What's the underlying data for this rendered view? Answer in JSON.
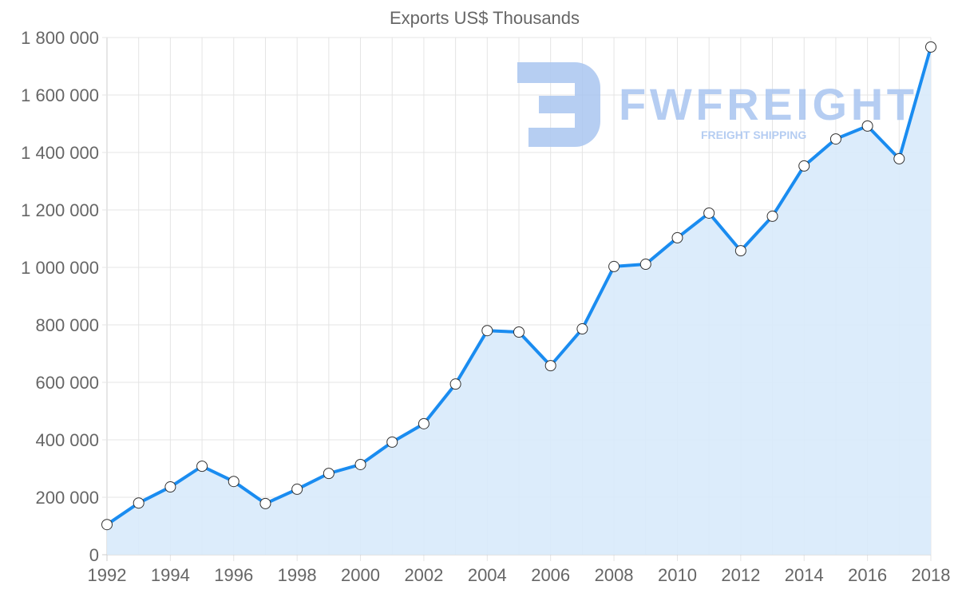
{
  "chart_data": {
    "type": "area",
    "title": "Exports US$ Thousands",
    "xlabel": "",
    "ylabel": "",
    "x": [
      1992,
      1993,
      1994,
      1995,
      1996,
      1997,
      1998,
      1999,
      2000,
      2001,
      2002,
      2003,
      2004,
      2005,
      2006,
      2007,
      2008,
      2009,
      2010,
      2011,
      2012,
      2013,
      2014,
      2015,
      2016,
      2017,
      2018
    ],
    "series": [
      {
        "name": "Exports US$ Thousands",
        "values": [
          105000,
          180000,
          236000,
          308000,
          255000,
          178000,
          228000,
          283000,
          314000,
          392000,
          456000,
          594000,
          780000,
          775000,
          658000,
          786000,
          1003000,
          1011000,
          1103000,
          1189000,
          1058000,
          1178000,
          1353000,
          1447000,
          1492000,
          1378000,
          1767000
        ]
      }
    ],
    "ylim": [
      0,
      1800000
    ],
    "xlim": [
      1992,
      2018
    ],
    "y_ticks": [
      "0",
      "200 000",
      "400 000",
      "600 000",
      "800 000",
      "1 000 000",
      "1 200 000",
      "1 400 000",
      "1 600 000",
      "1 800 000"
    ],
    "x_ticks": [
      "1992",
      "1994",
      "1996",
      "1998",
      "2000",
      "2002",
      "2004",
      "2006",
      "2008",
      "2010",
      "2012",
      "2014",
      "2016",
      "2018"
    ],
    "grid": true,
    "legend": "none",
    "colors": {
      "line": "#1a8cf0",
      "fill": "#d8eafb",
      "grid": "#e4e4e4",
      "text": "#666666",
      "watermark": "#a9c5f0"
    },
    "watermark": {
      "brand": "FWFREIGHT",
      "tagline": "FREIGHT SHIPPING"
    }
  }
}
